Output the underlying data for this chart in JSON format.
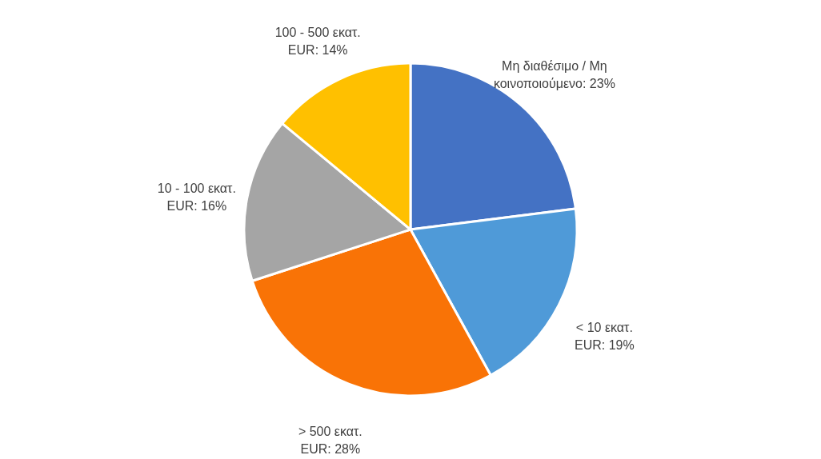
{
  "chart_data": {
    "type": "pie",
    "categories": [
      "Μη διαθέσιμο / Μη κοινοποιούμενο",
      "< 10 εκατ.  EUR",
      "> 500 εκατ. EUR",
      "10 - 100 εκατ. EUR",
      "100 - 500 εκατ. EUR"
    ],
    "values": [
      23,
      19,
      28,
      16,
      14
    ],
    "value_labels": [
      "23%",
      "19%",
      "28%",
      "16%",
      "14%"
    ],
    "colors": [
      "#4472c4",
      "#4f9ad8",
      "#f97306",
      "#a5a5a5",
      "#ffc000"
    ],
    "legend": false
  }
}
